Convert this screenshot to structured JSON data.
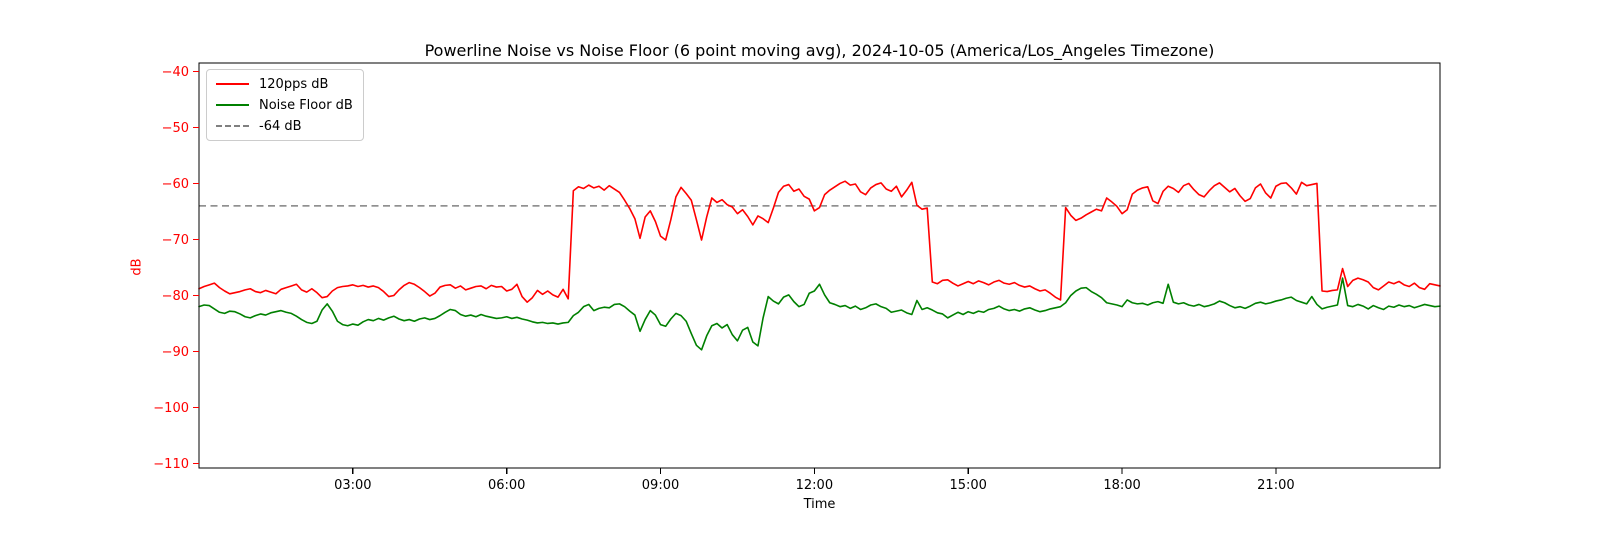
{
  "chart_data": {
    "type": "line",
    "title": "Powerline Noise vs Noise Floor (6 point moving avg), 2024-10-05 (America/Los_Angeles Timezone)",
    "xlabel": "Time",
    "ylabel": "dB",
    "ylabel_color": "#ff0000",
    "grid": false,
    "legend_position": "upper left",
    "xlim_hours": [
      0,
      24.2
    ],
    "ylim": [
      -110.8,
      -38.5
    ],
    "x_ticks": {
      "values": [
        3,
        6,
        9,
        12,
        15,
        18,
        21
      ],
      "labels": [
        "03:00",
        "06:00",
        "09:00",
        "12:00",
        "15:00",
        "18:00",
        "21:00"
      ],
      "color": "#000000"
    },
    "y_ticks": {
      "values": [
        -40,
        -50,
        -60,
        -70,
        -80,
        -90,
        -100,
        -110
      ],
      "labels": [
        "−40",
        "−50",
        "−60",
        "−70",
        "−80",
        "−90",
        "−100",
        "−110"
      ],
      "color": "#ff0000"
    },
    "threshold": {
      "label": "-64 dB",
      "value": -64,
      "color": "#808080",
      "style": "dashed"
    },
    "x_start_hours": 0,
    "x_step_hours": 0.1,
    "series": [
      {
        "name": "120pps dB",
        "color": "#ff0000",
        "values": [
          -78.8,
          -78.4,
          -78.1,
          -77.8,
          -78.6,
          -79.2,
          -79.7,
          -79.5,
          -79.3,
          -79.0,
          -78.8,
          -79.3,
          -79.5,
          -79.1,
          -79.4,
          -79.7,
          -78.9,
          -78.6,
          -78.3,
          -78.0,
          -79.0,
          -79.4,
          -78.8,
          -79.5,
          -80.4,
          -80.2,
          -79.2,
          -78.6,
          -78.4,
          -78.3,
          -78.1,
          -78.4,
          -78.2,
          -78.5,
          -78.3,
          -78.6,
          -79.3,
          -80.2,
          -80.0,
          -79.0,
          -78.2,
          -77.7,
          -78.0,
          -78.6,
          -79.3,
          -80.1,
          -79.6,
          -78.5,
          -78.2,
          -78.1,
          -78.7,
          -78.3,
          -79.0,
          -78.7,
          -78.4,
          -78.3,
          -78.8,
          -78.2,
          -78.5,
          -78.4,
          -79.2,
          -78.9,
          -78.0,
          -80.2,
          -81.2,
          -80.4,
          -79.1,
          -79.8,
          -79.2,
          -79.9,
          -80.3,
          -78.9,
          -80.6,
          -61.3,
          -60.6,
          -60.9,
          -60.3,
          -60.8,
          -60.5,
          -61.2,
          -60.4,
          -61.0,
          -61.6,
          -63.0,
          -64.5,
          -66.3,
          -69.8,
          -66.0,
          -64.9,
          -66.8,
          -69.4,
          -70.1,
          -66.5,
          -62.4,
          -60.7,
          -61.8,
          -63.0,
          -66.5,
          -70.1,
          -66.0,
          -62.6,
          -63.4,
          -62.9,
          -63.8,
          -64.2,
          -65.4,
          -64.7,
          -65.9,
          -67.4,
          -65.8,
          -66.3,
          -67.0,
          -64.4,
          -61.6,
          -60.5,
          -60.2,
          -61.4,
          -61.0,
          -62.3,
          -62.8,
          -64.9,
          -64.3,
          -62.0,
          -61.2,
          -60.6,
          -60.0,
          -59.6,
          -60.3,
          -60.1,
          -61.5,
          -62.0,
          -60.8,
          -60.2,
          -59.9,
          -61.0,
          -61.4,
          -60.5,
          -62.4,
          -61.2,
          -59.8,
          -63.9,
          -64.6,
          -64.4,
          -77.6,
          -77.9,
          -77.3,
          -77.2,
          -77.8,
          -78.3,
          -77.9,
          -77.5,
          -77.9,
          -77.4,
          -77.7,
          -78.1,
          -77.6,
          -77.3,
          -77.8,
          -78.0,
          -77.7,
          -78.2,
          -78.5,
          -78.3,
          -78.8,
          -79.2,
          -79.0,
          -79.6,
          -80.3,
          -80.8,
          -64.3,
          -65.7,
          -66.6,
          -66.2,
          -65.6,
          -65.1,
          -64.6,
          -64.9,
          -62.6,
          -63.3,
          -64.1,
          -65.4,
          -64.7,
          -61.9,
          -61.2,
          -60.8,
          -60.6,
          -63.1,
          -63.6,
          -61.4,
          -60.5,
          -60.9,
          -61.6,
          -60.4,
          -60.0,
          -61.1,
          -62.0,
          -62.4,
          -61.3,
          -60.4,
          -59.9,
          -60.7,
          -61.5,
          -60.9,
          -62.2,
          -63.2,
          -62.7,
          -60.8,
          -60.1,
          -61.7,
          -62.6,
          -60.5,
          -60.0,
          -59.9,
          -60.8,
          -61.9,
          -59.8,
          -60.4,
          -60.2,
          -60.0,
          -79.2,
          -79.3,
          -79.1,
          -79.0,
          -75.2,
          -78.4,
          -77.3,
          -76.9,
          -77.2,
          -77.6,
          -78.6,
          -79.0,
          -78.3,
          -77.6,
          -77.9,
          -77.5,
          -78.1,
          -78.4,
          -77.8,
          -78.6,
          -78.9,
          -77.9,
          -78.1,
          -78.3
        ]
      },
      {
        "name": "Noise Floor dB",
        "color": "#008000",
        "values": [
          -82.0,
          -81.7,
          -81.8,
          -82.4,
          -83.0,
          -83.2,
          -82.8,
          -82.9,
          -83.3,
          -83.8,
          -84.0,
          -83.6,
          -83.3,
          -83.5,
          -83.1,
          -82.9,
          -82.7,
          -83.0,
          -83.2,
          -83.7,
          -84.3,
          -84.8,
          -85.0,
          -84.6,
          -82.6,
          -81.5,
          -82.8,
          -84.6,
          -85.2,
          -85.4,
          -85.1,
          -85.3,
          -84.7,
          -84.3,
          -84.5,
          -84.1,
          -84.4,
          -84.0,
          -83.7,
          -84.2,
          -84.5,
          -84.3,
          -84.6,
          -84.2,
          -84.0,
          -84.3,
          -84.1,
          -83.6,
          -83.0,
          -82.5,
          -82.7,
          -83.4,
          -83.7,
          -83.5,
          -83.8,
          -83.4,
          -83.7,
          -83.9,
          -84.1,
          -84.0,
          -83.8,
          -84.1,
          -83.9,
          -84.2,
          -84.4,
          -84.7,
          -84.9,
          -84.8,
          -85.0,
          -84.9,
          -85.1,
          -84.9,
          -84.8,
          -83.6,
          -83.0,
          -82.0,
          -81.6,
          -82.7,
          -82.3,
          -82.1,
          -82.2,
          -81.6,
          -81.5,
          -82.0,
          -82.8,
          -83.5,
          -86.4,
          -84.3,
          -82.7,
          -83.5,
          -85.2,
          -85.5,
          -84.2,
          -83.2,
          -83.6,
          -84.6,
          -86.8,
          -88.9,
          -89.7,
          -87.2,
          -85.4,
          -85.0,
          -85.8,
          -85.2,
          -87.0,
          -88.1,
          -86.2,
          -85.7,
          -88.3,
          -89.0,
          -84.0,
          -80.2,
          -81.0,
          -81.5,
          -80.3,
          -79.9,
          -81.1,
          -82.0,
          -81.6,
          -79.6,
          -79.2,
          -78.0,
          -79.9,
          -81.3,
          -81.6,
          -82.0,
          -81.8,
          -82.3,
          -81.9,
          -82.5,
          -82.2,
          -81.7,
          -81.5,
          -82.0,
          -82.3,
          -83.0,
          -82.8,
          -82.6,
          -83.1,
          -83.4,
          -80.9,
          -82.5,
          -82.2,
          -82.6,
          -83.1,
          -83.3,
          -84.0,
          -83.5,
          -83.0,
          -83.4,
          -82.9,
          -83.2,
          -82.8,
          -83.0,
          -82.5,
          -82.3,
          -81.9,
          -82.4,
          -82.7,
          -82.5,
          -82.8,
          -82.4,
          -82.2,
          -82.6,
          -82.9,
          -82.7,
          -82.4,
          -82.2,
          -82.0,
          -81.3,
          -80.0,
          -79.2,
          -78.7,
          -78.6,
          -79.3,
          -79.8,
          -80.4,
          -81.3,
          -81.5,
          -81.7,
          -82.0,
          -80.8,
          -81.3,
          -81.5,
          -81.4,
          -81.7,
          -81.3,
          -81.1,
          -81.4,
          -78.0,
          -81.2,
          -81.5,
          -81.3,
          -81.7,
          -81.9,
          -81.6,
          -82.0,
          -81.8,
          -81.5,
          -81.0,
          -81.3,
          -81.8,
          -82.2,
          -82.0,
          -82.3,
          -81.9,
          -81.4,
          -81.2,
          -81.5,
          -81.3,
          -81.0,
          -80.8,
          -80.5,
          -80.3,
          -80.9,
          -81.2,
          -81.5,
          -80.2,
          -81.6,
          -82.4,
          -82.1,
          -81.9,
          -81.7,
          -76.9,
          -81.8,
          -82.0,
          -81.6,
          -81.9,
          -82.4,
          -81.8,
          -82.2,
          -82.5,
          -81.9,
          -82.1,
          -81.7,
          -82.0,
          -81.8,
          -82.2,
          -81.9,
          -81.6,
          -81.8,
          -82.0,
          -81.9
        ]
      }
    ]
  }
}
